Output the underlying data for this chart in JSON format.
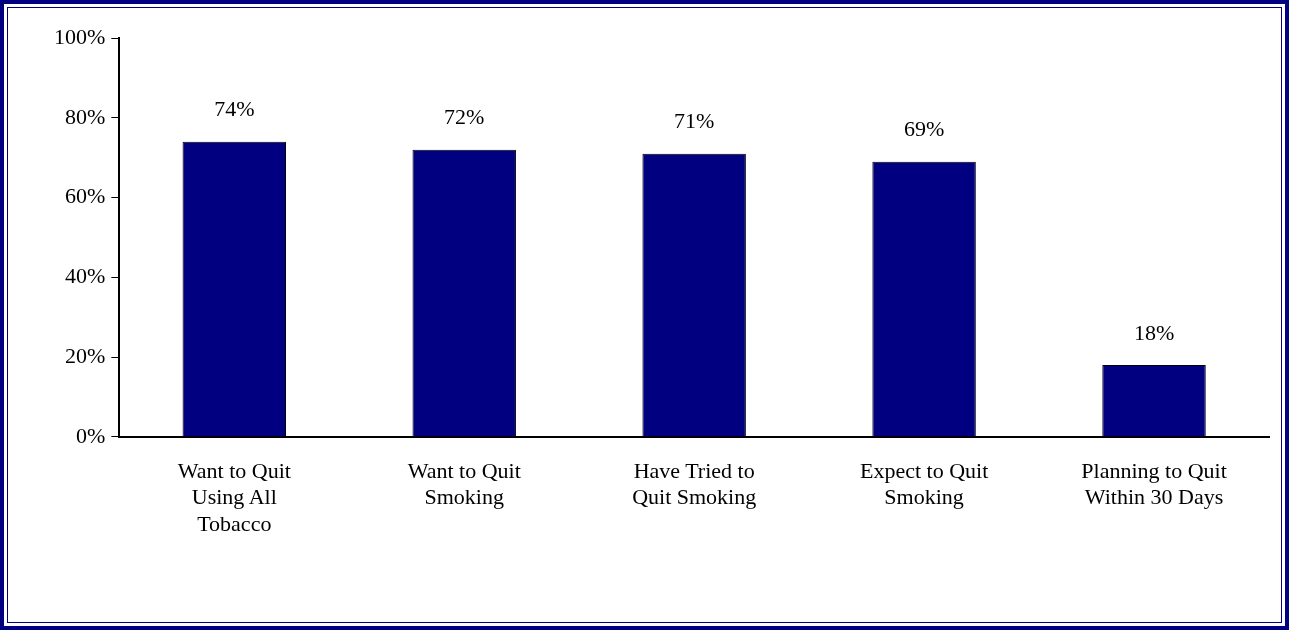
{
  "chart_data": {
    "type": "bar",
    "categories": [
      "Want to Quit Using All Tobacco",
      "Want to Quit Smoking",
      "Have Tried to Quit Smoking",
      "Expect to Quit Smoking",
      "Planning to Quit Within 30 Days"
    ],
    "values": [
      74,
      72,
      71,
      69,
      18
    ],
    "value_labels": [
      "74%",
      "72%",
      "71%",
      "69%",
      "18%"
    ],
    "color": "#000080",
    "ylim": [
      0,
      100
    ],
    "yticks": [
      {
        "value": 0,
        "label": "0%"
      },
      {
        "value": 20,
        "label": "20%"
      },
      {
        "value": 40,
        "label": "40%"
      },
      {
        "value": 60,
        "label": "60%"
      },
      {
        "value": 80,
        "label": "80%"
      },
      {
        "value": 100,
        "label": "100%"
      }
    ],
    "grid": false,
    "legend": false
  }
}
